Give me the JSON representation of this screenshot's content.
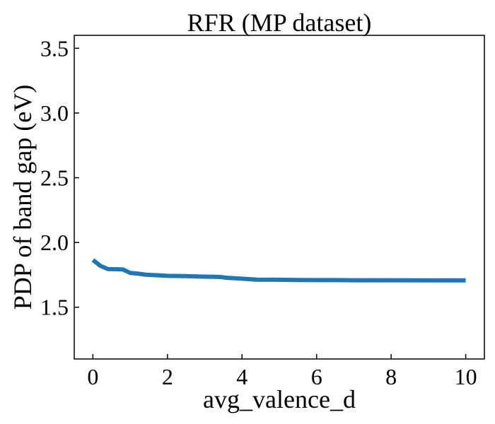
{
  "chart_data": {
    "type": "line",
    "title": "RFR (MP dataset)",
    "xlabel": "avg_valence_d",
    "ylabel": "PDP of band gap (eV)",
    "xlim": [
      -0.5,
      10.5
    ],
    "ylim": [
      1.1,
      3.6
    ],
    "xticks": [
      "0",
      "2",
      "4",
      "6",
      "8",
      "10"
    ],
    "yticks": [
      "1.5",
      "2.0",
      "2.5",
      "3.0",
      "3.5"
    ],
    "grid": false,
    "line_color": "#1f77b4",
    "series": [
      {
        "x": [
          0,
          0.2,
          0.4,
          0.6,
          0.8,
          1.0,
          1.2,
          1.4,
          1.6,
          1.8,
          2.0,
          2.5,
          3.0,
          3.4,
          3.6,
          4.0,
          4.4,
          5.0,
          5.5,
          6.0,
          6.5,
          7.0,
          7.5,
          8.0,
          9.0,
          10.0
        ],
        "y": [
          1.865,
          1.82,
          1.795,
          1.793,
          1.792,
          1.765,
          1.76,
          1.752,
          1.748,
          1.745,
          1.742,
          1.74,
          1.736,
          1.734,
          1.727,
          1.72,
          1.713,
          1.712,
          1.71,
          1.709,
          1.709,
          1.708,
          1.708,
          1.708,
          1.707,
          1.707
        ]
      }
    ]
  }
}
